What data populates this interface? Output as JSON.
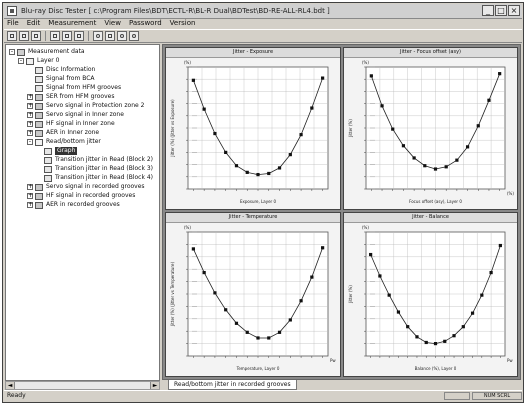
{
  "window": {
    "title": "Blu-ray Disc Tester [ c:\\Program Files\\BDT\\ECTL-R\\BL-R Dual\\BDTest\\BD-RE-ALL-RL4.bdt ]",
    "controls": [
      "_",
      "□",
      "×"
    ]
  },
  "menu": [
    "File",
    "Edit",
    "Measurement",
    "View",
    "Password",
    "Version"
  ],
  "toolbar_icons": [
    "new-icon",
    "open-icon",
    "save-icon",
    "separator",
    "print-icon",
    "print-preview-icon",
    "copy-icon",
    "separator",
    "measure-icon",
    "stop-icon",
    "settings-icon",
    "help-icon"
  ],
  "tree": [
    {
      "indent": 0,
      "icon": "db",
      "exp": "-",
      "label": "Measurement data"
    },
    {
      "indent": 1,
      "icon": "folder-open",
      "exp": "-",
      "label": "Layer 0"
    },
    {
      "indent": 2,
      "icon": "doc",
      "exp": "",
      "label": "Disc Information"
    },
    {
      "indent": 2,
      "icon": "doc",
      "exp": "",
      "label": "Signal from BCA"
    },
    {
      "indent": 2,
      "icon": "doc",
      "exp": "",
      "label": "Signal from HFM grooves"
    },
    {
      "indent": 2,
      "icon": "folder",
      "exp": "+",
      "label": "SER from HFM grooves"
    },
    {
      "indent": 2,
      "icon": "folder",
      "exp": "+",
      "label": "Servo signal in Protection zone 2"
    },
    {
      "indent": 2,
      "icon": "folder",
      "exp": "+",
      "label": "Servo signal in Inner zone"
    },
    {
      "indent": 2,
      "icon": "folder",
      "exp": "+",
      "label": "HF signal in Inner zone"
    },
    {
      "indent": 2,
      "icon": "folder",
      "exp": "+",
      "label": "AER in Inner zone"
    },
    {
      "indent": 2,
      "icon": "folder-open",
      "exp": "-",
      "label": "Read/bottom jitter"
    },
    {
      "indent": 3,
      "icon": "doc",
      "exp": "",
      "label": "Graph",
      "selected": true
    },
    {
      "indent": 3,
      "icon": "doc",
      "exp": "",
      "label": "Transition jitter in Read (Block 2)"
    },
    {
      "indent": 3,
      "icon": "doc",
      "exp": "",
      "label": "Transition jitter in Read (Block 3)"
    },
    {
      "indent": 3,
      "icon": "doc",
      "exp": "",
      "label": "Transition jitter in Read (Block 4)"
    },
    {
      "indent": 2,
      "icon": "folder",
      "exp": "+",
      "label": "Servo signal in recorded grooves"
    },
    {
      "indent": 2,
      "icon": "folder",
      "exp": "+",
      "label": "HF signal in recorded grooves"
    },
    {
      "indent": 2,
      "icon": "folder",
      "exp": "+",
      "label": "AER in recorded grooves"
    }
  ],
  "scroll_arrows": {
    "left": "◄",
    "right": "►"
  },
  "charts": [
    {
      "title": "Jitter - Exposure",
      "xlabel": "Exposure, Layer 0",
      "ylabel": "Jitter (%) (Jitter vs Exposure)",
      "top_label": "(%)",
      "right_unit": "",
      "chart_data": {
        "type": "line",
        "x": [
          1,
          2,
          3,
          4,
          5,
          6,
          7,
          8,
          9,
          10,
          11,
          12,
          13
        ],
        "y": [
          14.8,
          12.2,
          10.0,
          8.3,
          7.1,
          6.5,
          6.3,
          6.4,
          6.9,
          8.1,
          9.9,
          12.3,
          15.0
        ],
        "ylim": [
          5,
          16
        ],
        "grid": true
      }
    },
    {
      "title": "Jitter - Focus offset (asy)",
      "xlabel": "Focus offset (asy), Layer 0",
      "ylabel": "Jitter (%)",
      "top_label": "(%)",
      "right_unit": "(%)",
      "chart_data": {
        "type": "line",
        "x": [
          1,
          2,
          3,
          4,
          5,
          6,
          7,
          8,
          9,
          10,
          11,
          12,
          13
        ],
        "y": [
          15.2,
          12.5,
          10.4,
          8.9,
          7.8,
          7.1,
          6.8,
          7.0,
          7.6,
          8.8,
          10.7,
          13.0,
          15.4
        ],
        "ylim": [
          5,
          16
        ],
        "grid": true
      }
    },
    {
      "title": "Jitter - Temperature",
      "xlabel": "Temperature, Layer 0",
      "ylabel": "Jitter (%) (Jitter vs Temperature)",
      "top_label": "(%)",
      "right_unit": "Pw",
      "chart_data": {
        "type": "line",
        "x": [
          1,
          2,
          3,
          4,
          5,
          6,
          7,
          8,
          9,
          10,
          11,
          12,
          13
        ],
        "y": [
          14.5,
          12.4,
          10.6,
          9.1,
          7.9,
          7.1,
          6.6,
          6.6,
          7.1,
          8.2,
          9.9,
          12.0,
          14.6
        ],
        "ylim": [
          5,
          16
        ],
        "grid": true
      }
    },
    {
      "title": "Jitter - Balance",
      "xlabel": "Balance (%), Layer 0",
      "ylabel": "Jitter (%)",
      "top_label": "(%)",
      "right_unit": "Pw",
      "chart_data": {
        "type": "line",
        "x": [
          1,
          2,
          3,
          4,
          5,
          6,
          7,
          8,
          9,
          10,
          11,
          12,
          13,
          14,
          15
        ],
        "y": [
          14.0,
          12.1,
          10.4,
          8.9,
          7.6,
          6.7,
          6.2,
          6.1,
          6.3,
          6.8,
          7.6,
          8.8,
          10.4,
          12.4,
          14.8
        ],
        "ylim": [
          5,
          16
        ],
        "grid": true
      }
    }
  ],
  "tab": {
    "label": "Read/bottom jitter in recorded grooves"
  },
  "status": {
    "text": "Ready",
    "panel1": "",
    "panel2": "NUM  SCRL"
  }
}
